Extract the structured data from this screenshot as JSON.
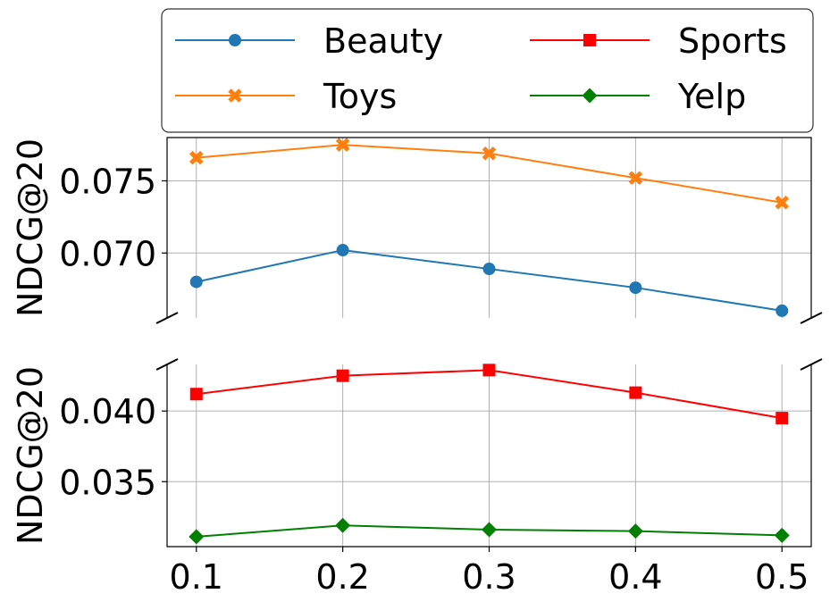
{
  "chart_data": {
    "type": "line",
    "x": [
      0.1,
      0.2,
      0.3,
      0.4,
      0.5
    ],
    "x_tick_labels": [
      "0.1",
      "0.2",
      "0.3",
      "0.4",
      "0.5"
    ],
    "xlim": [
      0.08,
      0.52
    ],
    "grid": true,
    "broken_axis": true,
    "legend": {
      "placement": "top",
      "columns": 2,
      "entries": [
        "Beauty",
        "Sports",
        "Toys",
        "Yelp"
      ]
    },
    "panels": [
      {
        "id": "upper",
        "ylabel": "NDCG@20",
        "ylim": [
          0.0655,
          0.078
        ],
        "y_ticks": [
          0.07,
          0.075
        ],
        "y_tick_labels": [
          "0.070",
          "0.075"
        ],
        "series": [
          {
            "name": "Toys",
            "color": "#ff7f0e",
            "marker": "x",
            "values": [
              0.0766,
              0.0775,
              0.0769,
              0.0752,
              0.0735
            ]
          },
          {
            "name": "Beauty",
            "color": "#1f77b4",
            "marker": "circle",
            "values": [
              0.068,
              0.0702,
              0.0689,
              0.0676,
              0.066
            ]
          }
        ]
      },
      {
        "id": "lower",
        "ylabel": "NDCG@20",
        "ylim": [
          0.0304,
          0.0433
        ],
        "y_ticks": [
          0.035,
          0.04
        ],
        "y_tick_labels": [
          "0.035",
          "0.040"
        ],
        "series": [
          {
            "name": "Sports",
            "color": "#ff0000",
            "marker": "square",
            "values": [
              0.0412,
              0.0425,
              0.0429,
              0.0413,
              0.0395
            ]
          },
          {
            "name": "Yelp",
            "color": "#008000",
            "marker": "diamond",
            "values": [
              0.0311,
              0.0319,
              0.0316,
              0.0315,
              0.0312
            ]
          }
        ]
      }
    ]
  }
}
